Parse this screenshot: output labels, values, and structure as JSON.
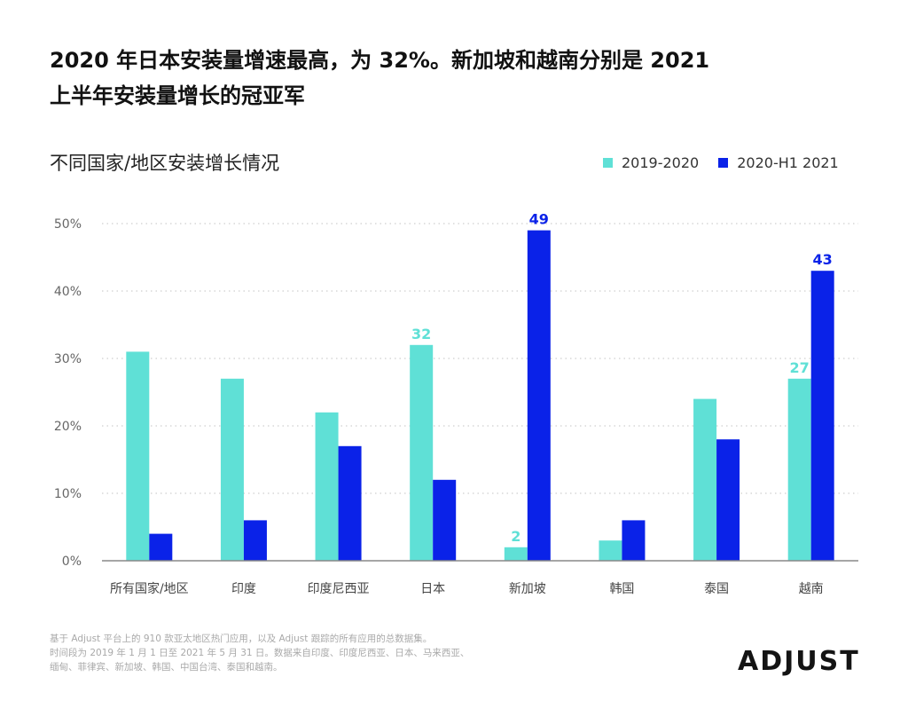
{
  "headline": {
    "line1": "2020 年日本安装量增速最高，为 32%。新加坡和越南分别是 2021",
    "line2": "上半年安装量增长的冠亚军"
  },
  "colors": {
    "series_a": "#5fe0d6",
    "series_b": "#0a22e8",
    "grid": "#cfcfcf",
    "text": "#555555"
  },
  "chart_data": {
    "type": "bar",
    "title": "不同国家/地区安装增长情况",
    "categories": [
      "所有国家/地区",
      "印度",
      "印度尼西亚",
      "日本",
      "新加坡",
      "韩国",
      "泰国",
      "越南"
    ],
    "series": [
      {
        "name": "2019-2020",
        "values": [
          31,
          27,
          22,
          32,
          2,
          3,
          24,
          27
        ]
      },
      {
        "name": "2020-H1 2021",
        "values": [
          4,
          6,
          17,
          12,
          49,
          6,
          18,
          43
        ]
      }
    ],
    "data_labels": [
      {
        "series": 0,
        "category": 3,
        "text": "32"
      },
      {
        "series": 0,
        "category": 4,
        "text": "2"
      },
      {
        "series": 0,
        "category": 7,
        "text": "27"
      },
      {
        "series": 1,
        "category": 4,
        "text": "49"
      },
      {
        "series": 1,
        "category": 7,
        "text": "43"
      }
    ],
    "y_ticks": [
      "0%",
      "10%",
      "20%",
      "30%",
      "40%",
      "50%"
    ],
    "ylim": [
      0,
      50
    ],
    "grid": true,
    "legend_position": "top-right",
    "xlabel": "",
    "ylabel": ""
  },
  "footnote": {
    "line1": "基于 Adjust 平台上的 910 款亚太地区热门应用，以及 Adjust 跟踪的所有应用的总数据集。",
    "line2": "时间段为 2019 年 1 月 1 日至 2021 年 5 月 31 日。数据来自印度、印度尼西亚、日本、马来西亚、",
    "line3": "缅甸、菲律宾、新加坡、韩国、中国台湾、泰国和越南。"
  },
  "logo": {
    "text": "ADJUST"
  }
}
